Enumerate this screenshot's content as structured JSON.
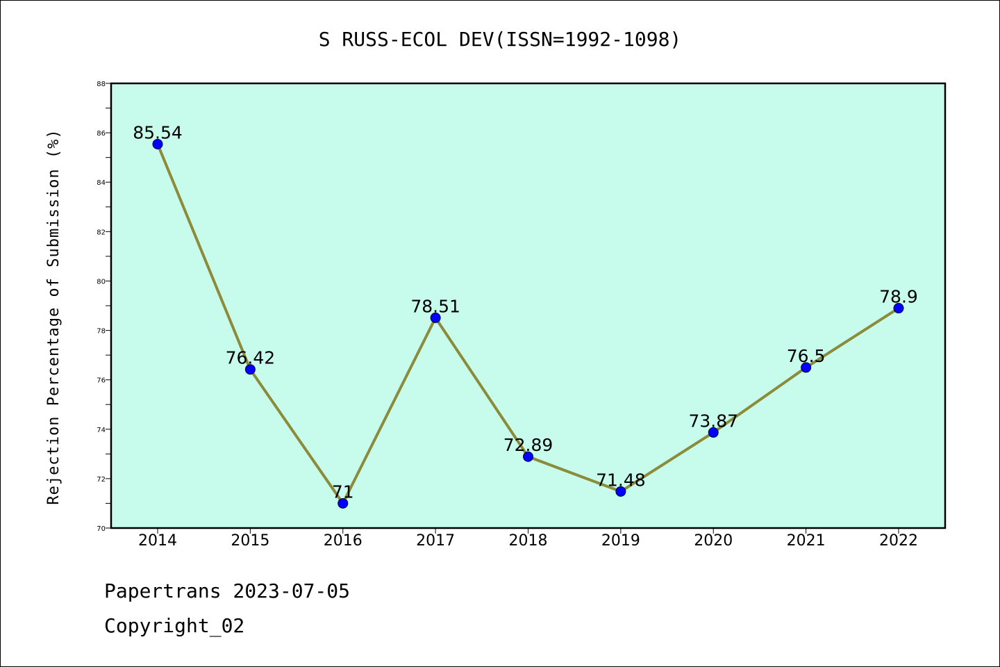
{
  "chart_data": {
    "type": "line",
    "title": "S RUSS-ECOL DEV(ISSN=1992-1098)",
    "xlabel": "",
    "ylabel": "Rejection Percentage of Submission (%)",
    "categories": [
      "2014",
      "2015",
      "2016",
      "2017",
      "2018",
      "2019",
      "2020",
      "2021",
      "2022"
    ],
    "values": [
      85.54,
      76.42,
      71,
      78.51,
      72.89,
      71.48,
      73.87,
      76.5,
      78.9
    ],
    "value_labels": [
      "85.54",
      "76.42",
      "71",
      "78.51",
      "72.89",
      "71.48",
      "73.87",
      "76.5",
      "78.9"
    ],
    "ylim": [
      70,
      88
    ],
    "yticks": [
      "70",
      "72",
      "74",
      "76",
      "78",
      "80",
      "82",
      "84",
      "86",
      "88"
    ],
    "grid": false,
    "colors": {
      "plot_background": "#c7fcec",
      "line": "#8b8b3a",
      "marker": "#0000ff"
    }
  },
  "footer": {
    "line1": "Papertrans 2023-07-05",
    "line2": "Copyright_02"
  }
}
